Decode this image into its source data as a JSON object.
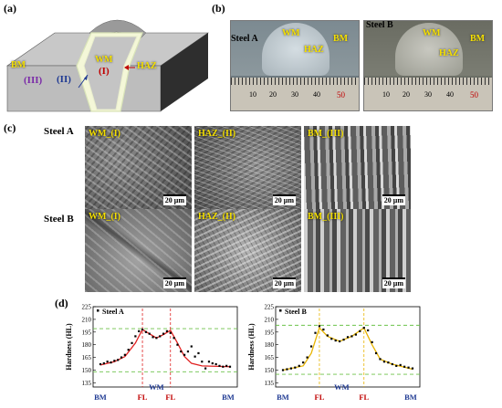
{
  "panels": {
    "a": "(a)",
    "b": "(b)",
    "c": "(c)",
    "d": "(d)"
  },
  "schematic": {
    "bm": "BM",
    "wm": "WM",
    "haz": "HAZ",
    "zone_i": "(I)",
    "zone_ii": "(II)",
    "zone_iii": "(III)"
  },
  "photos": [
    {
      "title": "Steel A",
      "wm": "WM",
      "bm": "BM",
      "haz": "HAZ",
      "ruler": [
        "10",
        "20",
        "30",
        "40",
        "50"
      ]
    },
    {
      "title": "Steel B",
      "wm": "WM",
      "bm": "BM",
      "haz": "HAZ",
      "ruler": [
        "10",
        "20",
        "30",
        "40",
        "50"
      ]
    }
  ],
  "micrographs": {
    "rows": [
      "Steel A",
      "Steel B"
    ],
    "columns": [
      "WM_(I)",
      "HAZ_(II)",
      "BM_(III)"
    ],
    "scale": "20 μm"
  },
  "chart_data": [
    {
      "type": "scatter",
      "legend": "Steel A",
      "ylabel": "Hardness (HL)",
      "ylim": [
        130,
        225
      ],
      "yticks": [
        135,
        150,
        165,
        180,
        195,
        210,
        225
      ],
      "region_labels": [
        "BM",
        "FL",
        "WM",
        "FL",
        "BM"
      ],
      "guide_lines": [
        148,
        199
      ],
      "points": [
        [
          0,
          157
        ],
        [
          2,
          158
        ],
        [
          4,
          160
        ],
        [
          6,
          159
        ],
        [
          8,
          161
        ],
        [
          10,
          162
        ],
        [
          12,
          165
        ],
        [
          14,
          168
        ],
        [
          16,
          174
        ],
        [
          18,
          182
        ],
        [
          20,
          190
        ],
        [
          22,
          196
        ],
        [
          24,
          198
        ],
        [
          26,
          195
        ],
        [
          28,
          193
        ],
        [
          30,
          189
        ],
        [
          32,
          188
        ],
        [
          34,
          190
        ],
        [
          36,
          193
        ],
        [
          38,
          196
        ],
        [
          40,
          194
        ],
        [
          42,
          188
        ],
        [
          44,
          180
        ],
        [
          46,
          172
        ],
        [
          48,
          168
        ],
        [
          50,
          172
        ],
        [
          52,
          178
        ],
        [
          54,
          166
        ],
        [
          56,
          170
        ],
        [
          58,
          160
        ],
        [
          60,
          152
        ],
        [
          62,
          160
        ],
        [
          64,
          158
        ],
        [
          66,
          157
        ],
        [
          68,
          155
        ],
        [
          70,
          154
        ],
        [
          72,
          155
        ],
        [
          74,
          154
        ]
      ],
      "fit": [
        [
          0,
          156
        ],
        [
          8,
          160
        ],
        [
          14,
          166
        ],
        [
          20,
          182
        ],
        [
          24,
          198
        ],
        [
          28,
          193
        ],
        [
          32,
          188
        ],
        [
          36,
          192
        ],
        [
          40,
          197
        ],
        [
          44,
          182
        ],
        [
          48,
          166
        ],
        [
          52,
          158
        ],
        [
          58,
          155
        ],
        [
          74,
          154
        ]
      ]
    },
    {
      "type": "scatter",
      "legend": "Steel B",
      "ylabel": "Hardness (HL)",
      "ylim": [
        130,
        225
      ],
      "yticks": [
        135,
        150,
        165,
        180,
        195,
        210,
        225
      ],
      "region_labels": [
        "BM",
        "FL",
        "WM",
        "FL",
        "BM"
      ],
      "guide_lines": [
        145,
        203
      ],
      "points": [
        [
          0,
          150
        ],
        [
          2,
          151
        ],
        [
          4,
          152
        ],
        [
          6,
          153
        ],
        [
          8,
          155
        ],
        [
          10,
          159
        ],
        [
          12,
          165
        ],
        [
          14,
          178
        ],
        [
          16,
          194
        ],
        [
          18,
          202
        ],
        [
          20,
          198
        ],
        [
          22,
          191
        ],
        [
          24,
          187
        ],
        [
          26,
          185
        ],
        [
          28,
          184
        ],
        [
          30,
          186
        ],
        [
          32,
          189
        ],
        [
          34,
          190
        ],
        [
          36,
          192
        ],
        [
          38,
          196
        ],
        [
          40,
          200
        ],
        [
          42,
          197
        ],
        [
          44,
          183
        ],
        [
          46,
          170
        ],
        [
          48,
          163
        ],
        [
          50,
          160
        ],
        [
          52,
          159
        ],
        [
          54,
          157
        ],
        [
          56,
          155
        ],
        [
          58,
          156
        ],
        [
          60,
          154
        ],
        [
          62,
          153
        ],
        [
          64,
          152
        ]
      ],
      "fit": [
        [
          0,
          150
        ],
        [
          10,
          155
        ],
        [
          14,
          170
        ],
        [
          18,
          200
        ],
        [
          22,
          190
        ],
        [
          28,
          184
        ],
        [
          34,
          190
        ],
        [
          40,
          200
        ],
        [
          44,
          180
        ],
        [
          48,
          163
        ],
        [
          54,
          157
        ],
        [
          64,
          151
        ]
      ]
    }
  ]
}
